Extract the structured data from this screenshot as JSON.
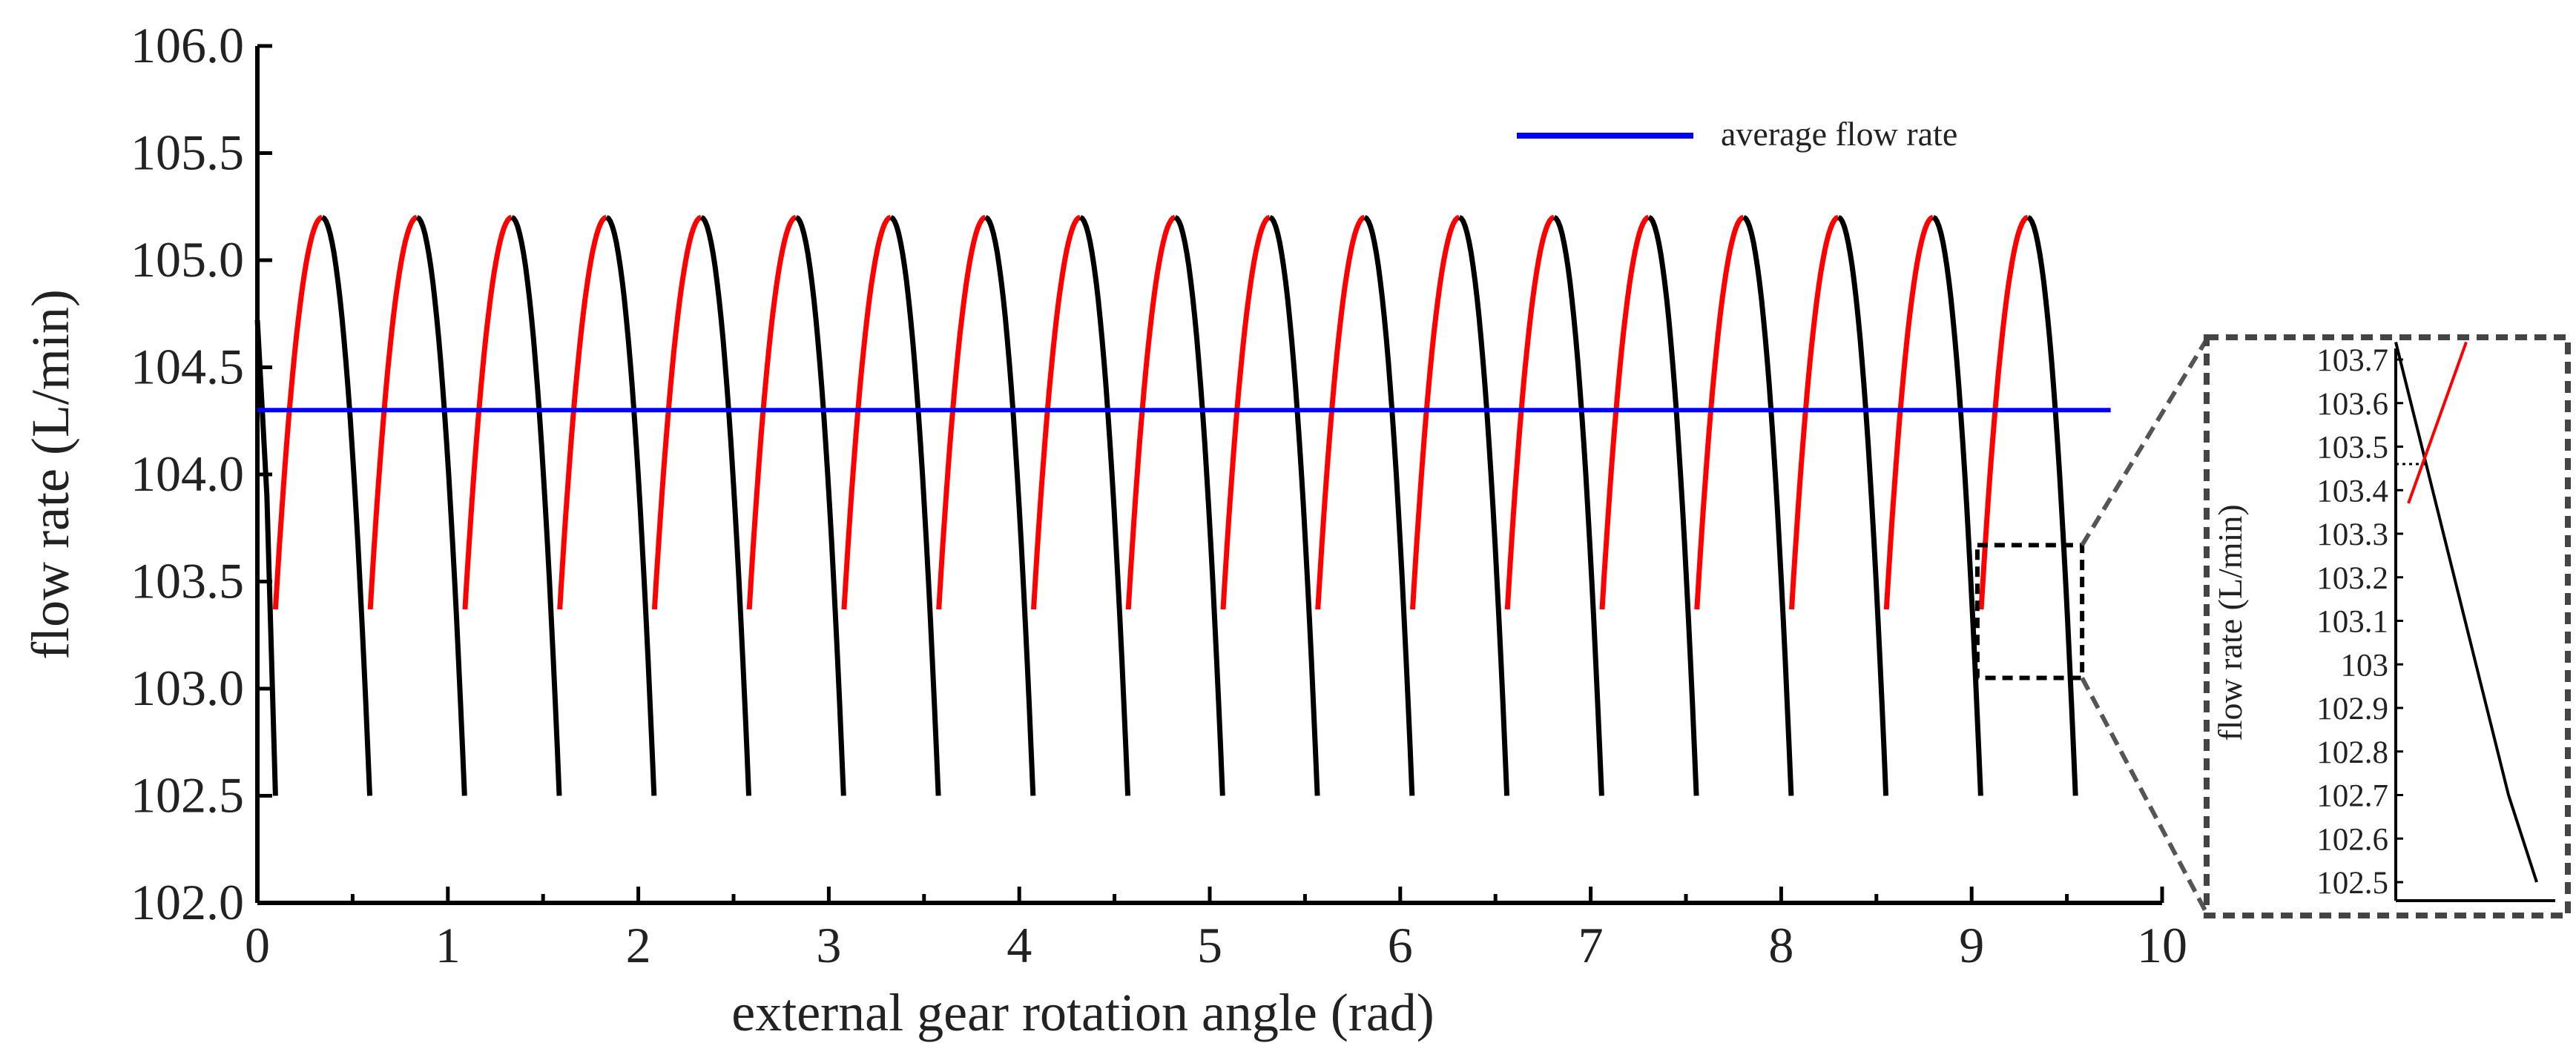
{
  "chart_data": [
    {
      "type": "line",
      "title": "",
      "xlabel": "external gear rotation angle (rad)",
      "ylabel": "flow rate (L/min)",
      "xlim": [
        0,
        10
      ],
      "ylim": [
        102.0,
        106.0
      ],
      "x_ticks": [
        0,
        1,
        2,
        3,
        4,
        5,
        6,
        7,
        8,
        9,
        10
      ],
      "x_tick_labels": [
        "0",
        "1",
        "2",
        "3",
        "4",
        "5",
        "6",
        "7",
        "8",
        "9",
        "10"
      ],
      "y_ticks": [
        102.0,
        102.5,
        103.0,
        103.5,
        104.0,
        104.5,
        105.0,
        105.5,
        106.0
      ],
      "y_tick_labels": [
        "102.0",
        "102.5",
        "103.0",
        "103.5",
        "104.0",
        "104.5",
        "105.0",
        "105.5",
        "106.0"
      ],
      "grid": false,
      "legend": {
        "position": "top-right",
        "entries": [
          "average flow rate"
        ]
      },
      "series": [
        {
          "name": "flow rate (red branch)",
          "color": "#ff0000",
          "pattern": "rising arcs repeating every 0.4975 rad",
          "period": 0.4975,
          "first_start_x": 0.095,
          "start_y": 103.37,
          "peak_offset": 0.245,
          "peak_y": 105.2,
          "count": 19
        },
        {
          "name": "flow rate (black branch)",
          "color": "#000000",
          "pattern": "falling arcs repeating every 0.4975 rad",
          "period": 0.4975,
          "first_peak_x": 0.34,
          "peak_y": 105.2,
          "end_offset": 0.25,
          "end_y": 102.5,
          "count": 19
        },
        {
          "name": "average flow rate",
          "color": "#0000ff",
          "x": [
            0.0,
            9.73
          ],
          "y": [
            104.3,
            104.3
          ]
        }
      ],
      "annotations": [
        {
          "type": "zoom-box",
          "x_range": [
            9.03,
            9.58
          ],
          "y_range": [
            103.05,
            103.67
          ]
        }
      ]
    },
    {
      "type": "line",
      "title": "",
      "xlabel": "",
      "ylabel": "flow rate (L/min)",
      "ylim": [
        102.4,
        103.78
      ],
      "y_ticks": [
        102.5,
        102.6,
        102.7,
        102.8,
        102.9,
        103.0,
        103.1,
        103.2,
        103.3,
        103.4,
        103.5,
        103.6,
        103.7
      ],
      "y_tick_labels": [
        "102.5",
        "102.6",
        "102.7",
        "102.8",
        "102.9",
        "103",
        "103.1",
        "103.2",
        "103.3",
        "103.4",
        "103.5",
        "103.6",
        "103.7"
      ],
      "grid": false,
      "series": [
        {
          "name": "flow rate (black branch, zoom)",
          "color": "#000000",
          "x": [
            0.0,
            0.1,
            0.2,
            0.3,
            0.4,
            0.5,
            0.6,
            0.7,
            0.8,
            0.9,
            1.0
          ],
          "y": [
            103.74,
            103.61,
            103.48,
            103.35,
            103.22,
            103.09,
            102.96,
            102.83,
            102.7,
            102.6,
            102.5
          ]
        },
        {
          "name": "flow rate (red branch, zoom)",
          "color": "#ff0000",
          "x": [
            0.09,
            0.5
          ],
          "y": [
            103.37,
            103.74
          ]
        }
      ],
      "annotations": [
        {
          "type": "dotted-guide",
          "y": 103.46,
          "x_end": 0.21
        }
      ]
    }
  ]
}
